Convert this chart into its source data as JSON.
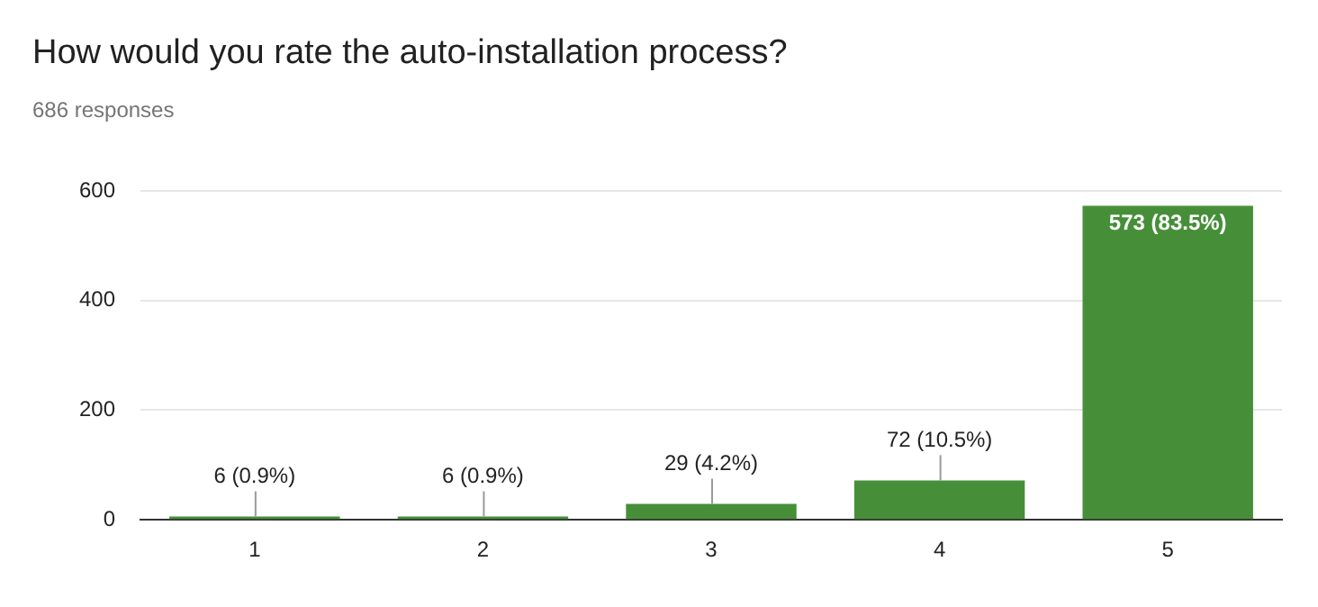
{
  "chart_data": {
    "type": "bar",
    "title": "How would you rate the auto-installation process?",
    "subtitle": "686 responses",
    "categories": [
      "1",
      "2",
      "3",
      "4",
      "5"
    ],
    "values": [
      6,
      6,
      29,
      72,
      573
    ],
    "color": "#468f38",
    "value_labels": [
      "6 (0.9%)",
      "6 (0.9%)",
      "29 (4.2%)",
      "72 (10.5%)",
      "573 (83.5%)"
    ],
    "ylim": [
      0,
      600
    ],
    "yticks": [
      0,
      200,
      400,
      600
    ],
    "grid": "y",
    "legend": false
  }
}
